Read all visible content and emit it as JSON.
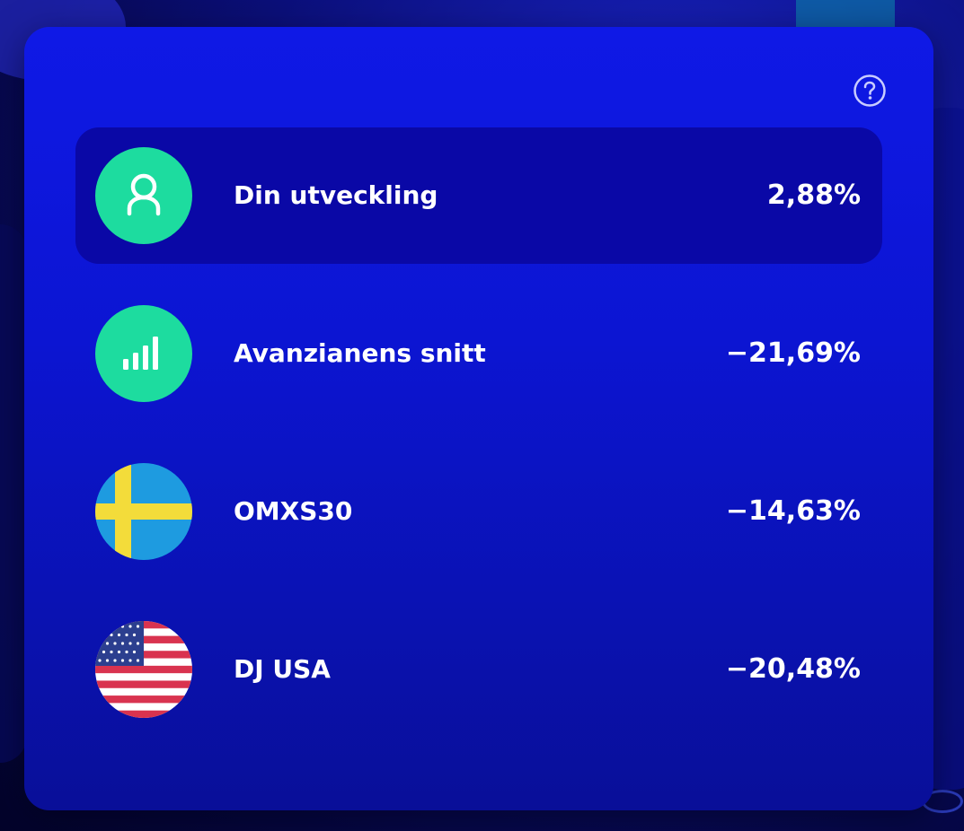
{
  "colors": {
    "card": "#0f19e6",
    "highlight_row": "#0a08a6",
    "icon_green": "#1ddc9f",
    "text": "#ffffff"
  },
  "help": {
    "icon": "question-circle-icon"
  },
  "rows": [
    {
      "label": "Din utveckling",
      "value": "2,88%",
      "icon": "user-icon",
      "highlighted": true
    },
    {
      "label": "Avanzianens snitt",
      "value": "−21,69%",
      "icon": "bar-chart-icon",
      "highlighted": false
    },
    {
      "label": "OMXS30",
      "value": "−14,63%",
      "icon": "sweden-flag-icon",
      "highlighted": false
    },
    {
      "label": "DJ USA",
      "value": "−20,48%",
      "icon": "usa-flag-icon",
      "highlighted": false
    }
  ]
}
